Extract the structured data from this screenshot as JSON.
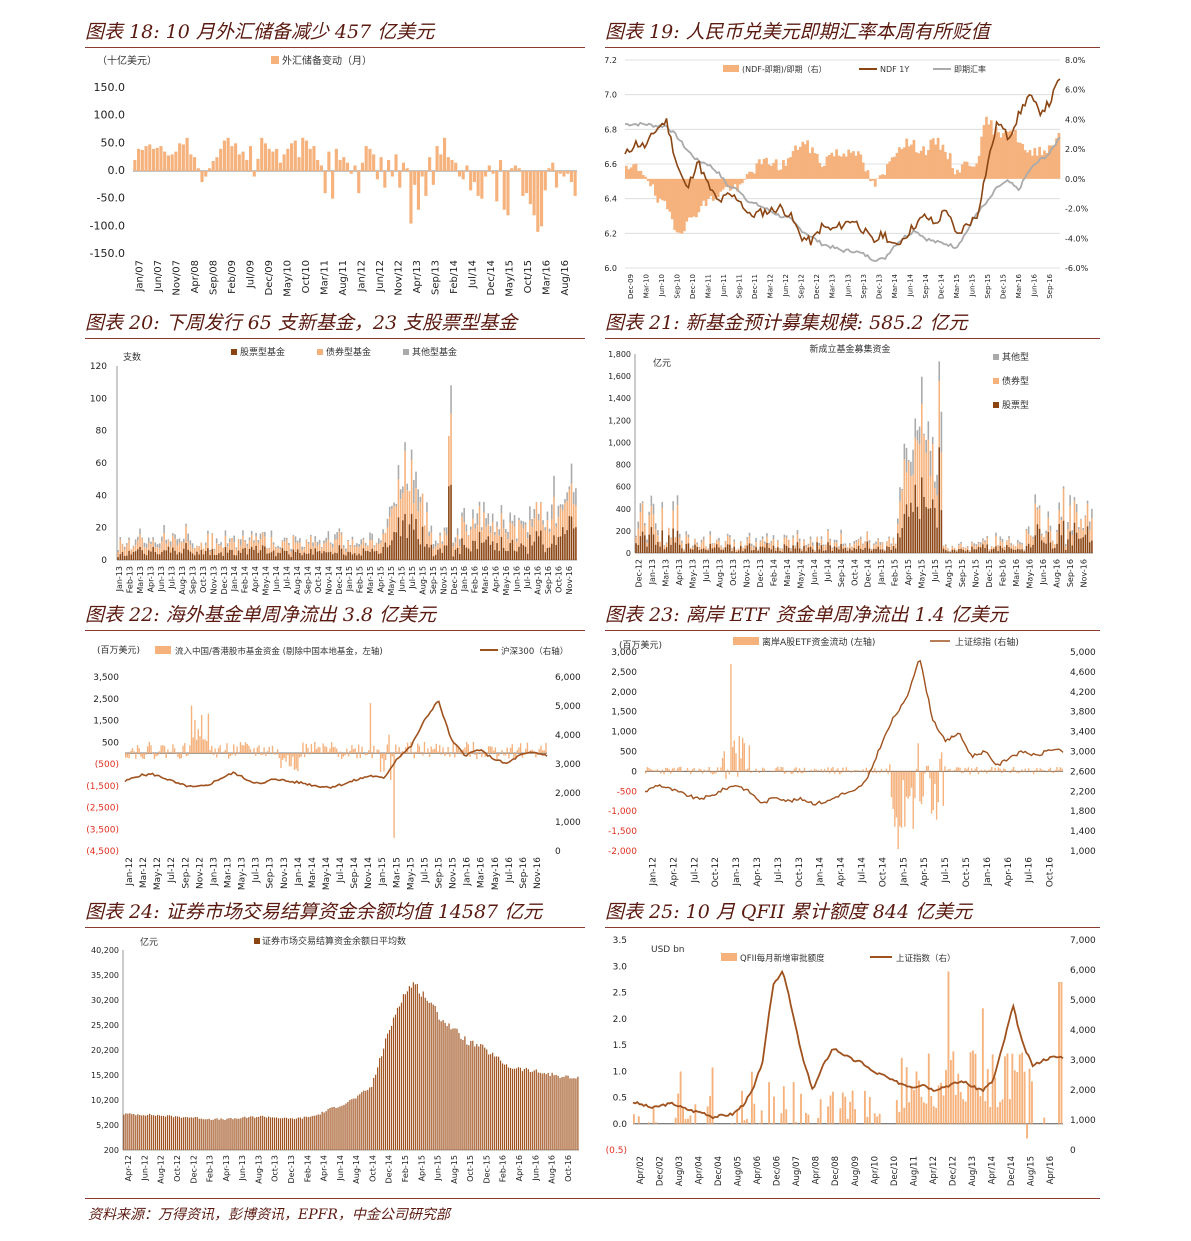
{
  "figures": [
    {
      "id": "fig18",
      "title": "图表 18: 10 月外汇储备减少 457 亿美元"
    },
    {
      "id": "fig19",
      "title": "图表 19: 人民币兑美元即期汇率本周有所贬值"
    },
    {
      "id": "fig20",
      "title": "图表 20: 下周发行 65 支新基金，23 支股票型基金"
    },
    {
      "id": "fig21",
      "title": "图表 21: 新基金预计募集规模: 585.2 亿元"
    },
    {
      "id": "fig22",
      "title": "图表 22: 海外基金单周净流出 3.8 亿美元"
    },
    {
      "id": "fig23",
      "title": "图表 23: 离岸 ETF 资金单周净流出 1.4 亿美元"
    },
    {
      "id": "fig24",
      "title": "图表 24: 证券市场交易结算资金余额均值 14587 亿元"
    },
    {
      "id": "fig25",
      "title": "图表 25: 10 月 QFII 累计额度 844 亿美元"
    }
  ],
  "source": "资料来源：万得资讯，彭博资讯，EPFR，中金公司研究部",
  "colors": {
    "bar": "#f5b27d",
    "line": "#a0521e",
    "gray": "#aaaaaa",
    "brown": "#8b4513",
    "neg": "#e03020"
  },
  "chart_data": [
    {
      "id": "fig18",
      "type": "bar",
      "unit_label": "（十亿美元）",
      "series": [
        {
          "name": "外汇储备变动（月）",
          "values": [
            20,
            40,
            38,
            45,
            48,
            40,
            42,
            45,
            35,
            28,
            30,
            35,
            50,
            48,
            60,
            30,
            25,
            5,
            -20,
            -10,
            5,
            18,
            25,
            40,
            55,
            60,
            45,
            50,
            30,
            35,
            20,
            45,
            -10,
            22,
            60,
            50,
            40,
            35,
            40,
            15,
            30,
            40,
            50,
            55,
            25,
            60,
            55,
            40,
            45,
            20,
            10,
            -40,
            35,
            -50,
            40,
            20,
            25,
            15,
            -5,
            10,
            -40,
            15,
            45,
            40,
            30,
            -15,
            25,
            -30,
            20,
            -10,
            30,
            -30,
            15,
            5,
            -95,
            -25,
            -70,
            -10,
            -45,
            25,
            -25,
            45,
            30,
            60,
            25,
            20,
            15,
            -10,
            -15,
            10,
            -35,
            -20,
            -45,
            -50,
            -10,
            10,
            -5,
            -55,
            20,
            -70,
            -80,
            5,
            10,
            5,
            -45,
            -40,
            -60,
            -80,
            -110,
            -100,
            -35,
            5,
            15,
            -30,
            -5,
            -10,
            -5,
            -20,
            -45
          ]
        }
      ],
      "x_labels": [
        "Jan/07",
        "Jun/07",
        "Nov/07",
        "Apr/08",
        "Sep/08",
        "Feb/09",
        "Jul/09",
        "Dec/09",
        "May/10",
        "Oct/10",
        "Mar/11",
        "Aug/11",
        "Jan/12",
        "Jun/12",
        "Nov/12",
        "Apr/13",
        "Sep/13",
        "Feb/14",
        "Jul/14",
        "Dec/14",
        "May/15",
        "Oct/15",
        "Mar/16",
        "Aug/16"
      ],
      "y_ticks": [
        "150.0",
        "100.0",
        "50.0",
        "0.0",
        "-50.0",
        "-100.0",
        "-150.0"
      ],
      "ylim": [
        -150,
        150
      ]
    },
    {
      "id": "fig19",
      "type": "line",
      "legend": [
        "(NDF-即期)/即期（右）",
        "NDF 1Y",
        "即期汇率"
      ],
      "x_labels": [
        "Dec-09",
        "Mar-10",
        "Jun-10",
        "Sep-10",
        "Dec-10",
        "Mar-11",
        "Jun-11",
        "Sep-11",
        "Dec-11",
        "Mar-12",
        "Jun-12",
        "Sep-12",
        "Dec-12",
        "Mar-13",
        "Jun-13",
        "Sep-13",
        "Dec-13",
        "Mar-14",
        "Jun-14",
        "Sep-14",
        "Dec-14",
        "Mar-15",
        "Jun-15",
        "Sep-15",
        "Dec-15",
        "Mar-16",
        "Jun-16",
        "Sep-16"
      ],
      "y_left_ticks": [
        "7.2",
        "7.0",
        "6.8",
        "6.6",
        "6.4",
        "6.2",
        "6.0"
      ],
      "y_right_ticks": [
        "8.0%",
        "6.0%",
        "4.0%",
        "2.0%",
        "0.0%",
        "-2.0%",
        "-4.0%",
        "-6.0%"
      ],
      "ylim_left": [
        6.0,
        7.2
      ],
      "ylim_right": [
        -6,
        8
      ],
      "ndf_1y": [
        6.65,
        6.72,
        6.7,
        6.8,
        6.85,
        6.6,
        6.45,
        6.62,
        6.48,
        6.38,
        6.42,
        6.4,
        6.3,
        6.32,
        6.33,
        6.35,
        6.3,
        6.18,
        6.15,
        6.24,
        6.22,
        6.25,
        6.28,
        6.22,
        6.15,
        6.2,
        6.12,
        6.18,
        6.25,
        6.3,
        6.25,
        6.35,
        6.18,
        6.25,
        6.3,
        6.6,
        6.85,
        6.75,
        6.88,
        7.0,
        6.9,
        6.95,
        7.1
      ],
      "spot": [
        6.83,
        6.83,
        6.83,
        6.82,
        6.82,
        6.76,
        6.68,
        6.62,
        6.6,
        6.55,
        6.47,
        6.45,
        6.38,
        6.36,
        6.33,
        6.3,
        6.28,
        6.22,
        6.18,
        6.14,
        6.12,
        6.1,
        6.1,
        6.08,
        6.05,
        6.05,
        6.13,
        6.18,
        6.22,
        6.17,
        6.15,
        6.14,
        6.12,
        6.21,
        6.32,
        6.38,
        6.47,
        6.5,
        6.45,
        6.56,
        6.62,
        6.66,
        6.76
      ],
      "spread_pct": [
        0.5,
        0.8,
        0.3,
        -1.5,
        -2.0,
        -3.5,
        -3.0,
        -2.0,
        -1.5,
        -1.0,
        -0.5,
        -0.8,
        0.5,
        1.0,
        1.2,
        0.8,
        1.5,
        2.5,
        2.0,
        1.0,
        1.8,
        1.6,
        2.2,
        1.0,
        -0.5,
        0.2,
        1.8,
        2.5,
        2.2,
        1.9,
        2.5,
        2.0,
        0.5,
        1.0,
        1.2,
        4.0,
        3.0,
        3.5,
        2.8,
        1.5,
        2.0,
        2.0,
        3.0
      ]
    },
    {
      "id": "fig20",
      "type": "bar",
      "unit_label": "支数",
      "series": [
        {
          "name": "股票型基金"
        },
        {
          "name": "债券型基金"
        },
        {
          "name": "其他型基金"
        }
      ],
      "x_labels": [
        "Jan-13",
        "Feb-13",
        "Mar-13",
        "Apr-13",
        "Jun-13",
        "Jul-13",
        "Aug-13",
        "Sep-13",
        "Oct-13",
        "Nov-13",
        "Dec-13",
        "Jan-14",
        "Feb-14",
        "Apr-14",
        "May-14",
        "Jun-14",
        "Jul-14",
        "Aug-14",
        "Sep-14",
        "Oct-14",
        "Nov-14",
        "Dec-14",
        "Jan-15",
        "Feb-15",
        "Mar-15",
        "Apr-15",
        "May-15",
        "Jun-15",
        "Jul-15",
        "Aug-15",
        "Sep-15",
        "Nov-15",
        "Dec-15",
        "Jan-16",
        "Feb-16",
        "Mar-16",
        "Apr-16",
        "May-16",
        "Jun-16",
        "Jul-16",
        "Aug-16",
        "Sep-16",
        "Oct-16",
        "Nov-16"
      ],
      "y_ticks": [
        "120",
        "100",
        "80",
        "60",
        "40",
        "20",
        "0"
      ],
      "ylim": [
        0,
        120
      ]
    },
    {
      "id": "fig21",
      "type": "bar",
      "chart_title": "新成立基金募集资金",
      "unit_label": "亿元",
      "series": [
        {
          "name": "其他型"
        },
        {
          "name": "债券型"
        },
        {
          "name": "股票型"
        }
      ],
      "x_labels": [
        "Dec-12",
        "Jan-13",
        "Mar-13",
        "Apr-13",
        "May-13",
        "Jul-13",
        "Aug-13",
        "Oct-13",
        "Nov-13",
        "Dec-13",
        "Feb-14",
        "Mar-14",
        "May-14",
        "Jun-14",
        "Jul-14",
        "Sep-14",
        "Oct-14",
        "Dec-14",
        "Jan-15",
        "Feb-15",
        "Apr-15",
        "May-15",
        "Jul-15",
        "Aug-15",
        "Sep-15",
        "Nov-15",
        "Dec-15",
        "Feb-16",
        "Mar-16",
        "May-16",
        "Jun-16",
        "Aug-16",
        "Sep-16",
        "Nov-16"
      ],
      "y_ticks": [
        "1,800",
        "1,600",
        "1,400",
        "1,200",
        "1,000",
        "800",
        "600",
        "400",
        "200",
        "0"
      ],
      "ylim": [
        0,
        1800
      ]
    },
    {
      "id": "fig22",
      "type": "bar",
      "unit_label": "(百万美元)",
      "legend": [
        "流入中国/香港股市基金资金 (剔除中国本地基金，左轴)",
        "沪深300（右轴）"
      ],
      "x_labels": [
        "Jan-12",
        "Mar-12",
        "May-12",
        "Jul-12",
        "Sep-12",
        "Nov-12",
        "Jan-13",
        "Mar-13",
        "May-13",
        "Jul-13",
        "Sep-13",
        "Nov-13",
        "Jan-14",
        "Mar-14",
        "May-14",
        "Jul-14",
        "Sep-14",
        "Nov-14",
        "Jan-15",
        "Mar-15",
        "May-15",
        "Jul-15",
        "Sep-15",
        "Nov-15",
        "Jan-16",
        "Mar-16",
        "May-16",
        "Jul-16",
        "Sep-16",
        "Nov-16"
      ],
      "y_left_ticks": [
        "3,500",
        "2,500",
        "1,500",
        "500",
        "(500)",
        "(1,500)",
        "(2,500)",
        "(3,500)",
        "(4,500)"
      ],
      "y_right_ticks": [
        "6,000",
        "5,000",
        "4,000",
        "3,000",
        "2,000",
        "1,000",
        "0"
      ],
      "ylim_left": [
        -4500,
        3500
      ],
      "ylim_right": [
        0,
        6000
      ],
      "hs300": [
        2400,
        2600,
        2650,
        2500,
        2300,
        2200,
        2250,
        2500,
        2700,
        2450,
        2300,
        2500,
        2400,
        2350,
        2250,
        2200,
        2300,
        2450,
        2600,
        2500,
        3200,
        3600,
        4500,
        5200,
        3800,
        3300,
        3500,
        3200,
        3000,
        3300,
        3400,
        3300
      ]
    },
    {
      "id": "fig23",
      "type": "bar",
      "unit_label": "(百万美元)",
      "legend": [
        "离岸A股ETF资金流动 (左轴)",
        "上证综指 (右轴)"
      ],
      "x_labels": [
        "Jan-12",
        "Apr-12",
        "Jul-12",
        "Oct-12",
        "Jan-13",
        "Apr-13",
        "Jul-13",
        "Oct-13",
        "Jan-14",
        "Apr-14",
        "Jul-14",
        "Oct-14",
        "Jan-15",
        "Apr-15",
        "Jul-15",
        "Oct-15",
        "Jan-16",
        "Apr-16",
        "Jul-16",
        "Oct-16"
      ],
      "y_left_ticks": [
        "3,000",
        "2,500",
        "2,000",
        "1,500",
        "1,000",
        "500",
        "0",
        "-500",
        "-1,000",
        "-1,500",
        "-2,000"
      ],
      "y_right_ticks": [
        "5,000",
        "4,600",
        "4,200",
        "3,800",
        "3,400",
        "3,000",
        "2,600",
        "2,200",
        "1,800",
        "1,400",
        "1,000"
      ],
      "ylim_left": [
        -2000,
        3000
      ],
      "ylim_right": [
        1000,
        5200
      ],
      "sh_index": [
        2250,
        2400,
        2300,
        2200,
        2100,
        2150,
        2300,
        2400,
        2250,
        2000,
        2150,
        2050,
        2100,
        2000,
        2050,
        2200,
        2250,
        2500,
        3200,
        3800,
        4200,
        5100,
        3800,
        3300,
        3500,
        3000,
        3100,
        2800,
        3000,
        3100,
        3000,
        3150,
        3100
      ]
    },
    {
      "id": "fig24",
      "type": "bar",
      "unit_label": "亿元",
      "series": [
        {
          "name": "证券市场交易结算资金余额日平均数"
        }
      ],
      "x_labels": [
        "Apr-12",
        "Jun-12",
        "Aug-12",
        "Oct-12",
        "Dec-12",
        "Feb-13",
        "Apr-13",
        "Jun-13",
        "Aug-13",
        "Oct-13",
        "Dec-13",
        "Feb-14",
        "Apr-14",
        "Jun-14",
        "Aug-14",
        "Oct-14",
        "Dec-14",
        "Feb-15",
        "Apr-15",
        "Jun-15",
        "Aug-15",
        "Oct-15",
        "Dec-15",
        "Feb-16",
        "Apr-16",
        "Jun-16",
        "Aug-16",
        "Oct-16"
      ],
      "y_ticks": [
        "40,200",
        "35,200",
        "30,200",
        "25,200",
        "20,200",
        "15,200",
        "10,200",
        "5,200",
        "200"
      ],
      "ylim": [
        200,
        40200
      ],
      "values": [
        7500,
        7400,
        7300,
        7100,
        6900,
        6800,
        6500,
        6400,
        6500,
        6800,
        7000,
        6800,
        6500,
        6700,
        7200,
        8500,
        9500,
        11000,
        13000,
        22000,
        30000,
        34000,
        31000,
        27000,
        24500,
        22000,
        21000,
        19000,
        17000,
        16500,
        16000,
        15500,
        15000,
        14600
      ]
    },
    {
      "id": "fig25",
      "type": "bar",
      "unit_label": "USD bn",
      "legend": [
        "QFII每月新增审批额度",
        "上证指数（右）"
      ],
      "x_labels": [
        "Apr/02",
        "Dec/02",
        "Aug/03",
        "Apr/04",
        "Dec/04",
        "Aug/05",
        "Apr/06",
        "Dec/06",
        "Aug/07",
        "Apr/08",
        "Dec/08",
        "Aug/09",
        "Apr/10",
        "Dec/10",
        "Aug/11",
        "Apr/12",
        "Dec/12",
        "Aug/13",
        "Apr/14",
        "Dec/14",
        "Aug/15",
        "Apr/16"
      ],
      "y_left_ticks": [
        "3.5",
        "3.0",
        "2.5",
        "2.0",
        "1.5",
        "1.0",
        "0.5",
        "0.0",
        "(0.5)"
      ],
      "y_right_ticks": [
        "7,000",
        "6,000",
        "5,000",
        "4,000",
        "3,000",
        "2,000",
        "1,000",
        "0"
      ],
      "ylim_left": [
        -0.5,
        3.5
      ],
      "ylim_right": [
        0,
        7000
      ],
      "sh_index": [
        1600,
        1500,
        1400,
        1500,
        1550,
        1400,
        1300,
        1250,
        1100,
        1150,
        1200,
        1500,
        2000,
        3000,
        5500,
        6000,
        4500,
        3000,
        2000,
        2800,
        3400,
        3200,
        3000,
        2900,
        2600,
        2500,
        2300,
        2200,
        2100,
        2200,
        2000,
        2100,
        2200,
        2300,
        2100,
        2000,
        2300,
        3500,
        4800,
        3500,
        2800,
        3000,
        3100,
        3100
      ]
    }
  ]
}
